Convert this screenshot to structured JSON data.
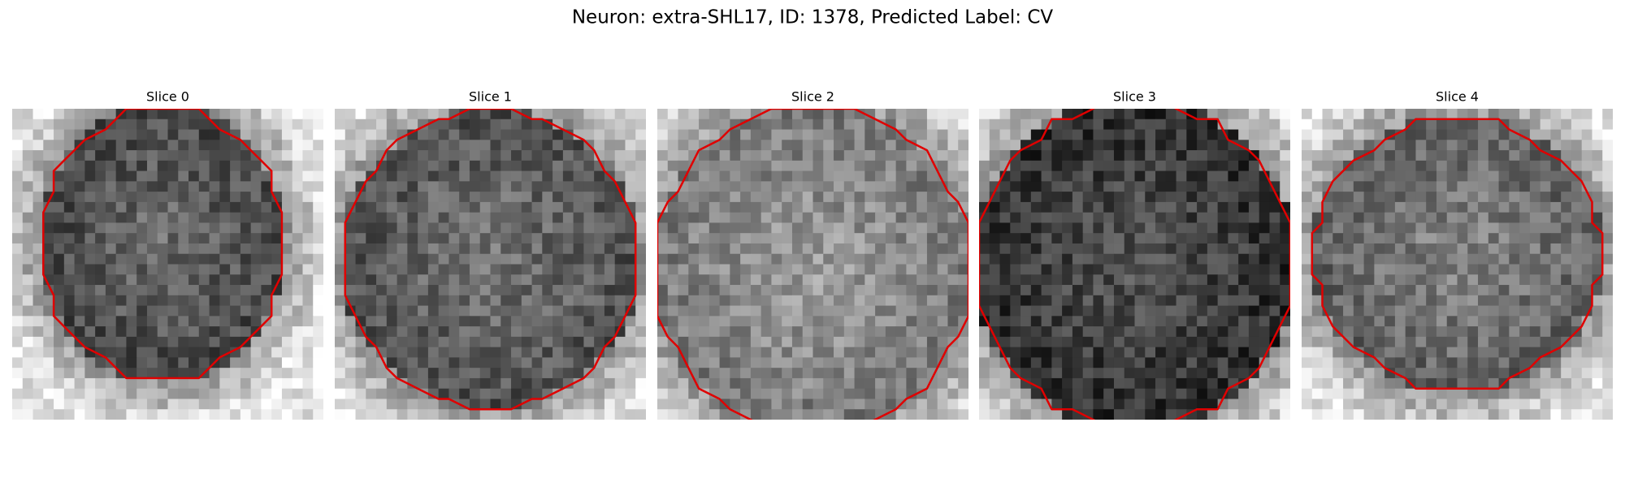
{
  "title": "Neuron: extra-SHL17, ID: 1378, Predicted Label: CV",
  "panels": [
    {
      "title": "Slice 0"
    },
    {
      "title": "Slice 1"
    },
    {
      "title": "Slice 2"
    },
    {
      "title": "Slice 3"
    },
    {
      "title": "Slice 4"
    }
  ]
}
